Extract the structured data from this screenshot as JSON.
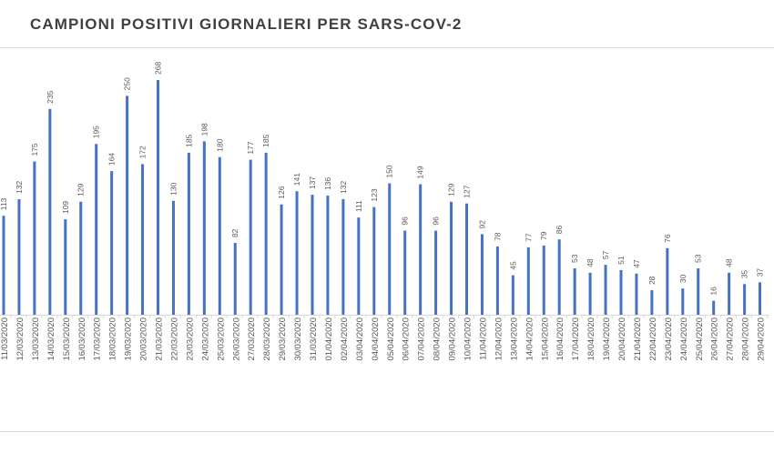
{
  "chart_data": {
    "type": "bar",
    "title": "CAMPIONI POSITIVI GIORNALIERI PER SARS-COV-2",
    "xlabel": "",
    "ylabel": "",
    "ylim": [
      0,
      280
    ],
    "grid": false,
    "legend": "none",
    "bar_color": "#4472c4",
    "label_color": "#595959",
    "axis_color": "#d9d9d9",
    "categories": [
      "11/03/2020",
      "12/03/2020",
      "13/03/2020",
      "14/03/2020",
      "15/03/2020",
      "16/03/2020",
      "17/03/2020",
      "18/03/2020",
      "19/03/2020",
      "20/03/2020",
      "21/03/2020",
      "22/03/2020",
      "23/03/2020",
      "24/03/2020",
      "25/03/2020",
      "26/03/2020",
      "27/03/2020",
      "28/03/2020",
      "29/03/2020",
      "30/03/2020",
      "31/03/2020",
      "01/04/2020",
      "02/04/2020",
      "03/04/2020",
      "04/04/2020",
      "05/04/2020",
      "06/04/2020",
      "07/04/2020",
      "08/04/2020",
      "09/04/2020",
      "10/04/2020",
      "11/04/2020",
      "12/04/2020",
      "13/04/2020",
      "14/04/2020",
      "15/04/2020",
      "16/04/2020",
      "17/04/2020",
      "18/04/2020",
      "19/04/2020",
      "20/04/2020",
      "21/04/2020",
      "22/04/2020",
      "23/04/2020",
      "24/04/2020",
      "25/04/2020",
      "26/04/2020",
      "27/04/2020",
      "28/04/2020",
      "29/04/2020"
    ],
    "values": [
      113,
      132,
      175,
      235,
      109,
      129,
      195,
      164,
      250,
      172,
      268,
      130,
      185,
      198,
      180,
      82,
      177,
      185,
      126,
      141,
      137,
      136,
      132,
      111,
      123,
      150,
      96,
      149,
      96,
      129,
      127,
      92,
      78,
      45,
      77,
      79,
      86,
      53,
      48,
      57,
      51,
      47,
      28,
      76,
      30,
      53,
      16,
      48,
      35,
      37
    ]
  }
}
